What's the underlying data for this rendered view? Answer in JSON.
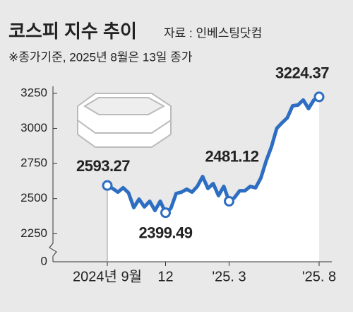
{
  "chart_data": {
    "type": "line",
    "title": "코스피 지수 추이",
    "source": "자료 : 인베스팅닷컴",
    "note": "※종가기준, 2025년 8월은 13일 종가",
    "categories": [
      "2024년 9월",
      null,
      null,
      null,
      null,
      null,
      null,
      null,
      null,
      null,
      null,
      "12",
      null,
      null,
      null,
      null,
      null,
      null,
      null,
      null,
      null,
      null,
      null,
      "'25. 3",
      null,
      null,
      null,
      null,
      null,
      null,
      null,
      null,
      null,
      null,
      null,
      null,
      null,
      null,
      null,
      null,
      "'25. 8"
    ],
    "values": [
      2593.27,
      2572,
      2546,
      2577,
      2541,
      2436,
      2496,
      2441,
      2481,
      2415,
      2481,
      2399.49,
      2430,
      2536,
      2546,
      2567,
      2546,
      2587,
      2657,
      2572,
      2607,
      2521,
      2587,
      2481.12,
      2506,
      2556,
      2556,
      2587,
      2577,
      2647,
      2768,
      2869,
      3000,
      3040,
      3076,
      3161,
      3166,
      3202,
      3141,
      3202,
      3224.37
    ],
    "labeled_points": [
      0,
      11,
      23,
      40
    ],
    "color": "#2e6ec2",
    "ylim": [
      2050,
      3350
    ],
    "yticks": [
      0,
      2250,
      2500,
      2750,
      3000,
      3250
    ],
    "axis_break": true
  }
}
